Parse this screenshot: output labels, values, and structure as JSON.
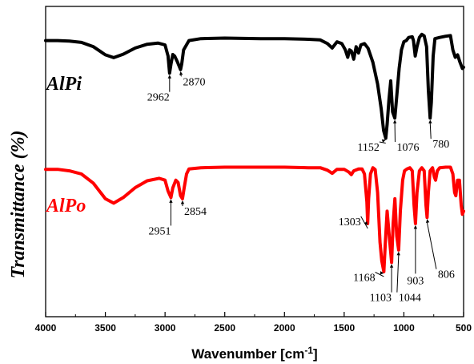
{
  "chart_data": {
    "type": "line",
    "xlabel": "Wavenumber [cm",
    "xlabel_sup": "-1",
    "xlabel_end": "]",
    "ylabel": "Transmittance (%)",
    "xlim": [
      4000,
      500
    ],
    "x_reversed": true,
    "ylim": [
      0,
      100
    ],
    "xticks": [
      "4000",
      "3500",
      "3000",
      "2500",
      "2000",
      "1500",
      "1000",
      "500"
    ],
    "grid": false,
    "series": [
      {
        "name": "AlPi",
        "color": "#000000",
        "points": [
          [
            4000,
            89
          ],
          [
            3900,
            89
          ],
          [
            3800,
            88.8
          ],
          [
            3700,
            88.4
          ],
          [
            3600,
            87
          ],
          [
            3500,
            84.4
          ],
          [
            3430,
            83.5
          ],
          [
            3350,
            84.6
          ],
          [
            3250,
            86.6
          ],
          [
            3150,
            87.8
          ],
          [
            3060,
            88.2
          ],
          [
            3000,
            87.6
          ],
          [
            2975,
            84
          ],
          [
            2962,
            78.5
          ],
          [
            2950,
            81.5
          ],
          [
            2935,
            84.5
          ],
          [
            2920,
            84
          ],
          [
            2895,
            82
          ],
          [
            2880,
            80.6
          ],
          [
            2870,
            79.6
          ],
          [
            2860,
            81.5
          ],
          [
            2845,
            86
          ],
          [
            2800,
            89
          ],
          [
            2700,
            89.6
          ],
          [
            2500,
            89.8
          ],
          [
            2200,
            89.6
          ],
          [
            2000,
            89.6
          ],
          [
            1800,
            89.4
          ],
          [
            1700,
            89.2
          ],
          [
            1640,
            88
          ],
          [
            1600,
            86.6
          ],
          [
            1560,
            88.6
          ],
          [
            1520,
            88
          ],
          [
            1490,
            86
          ],
          [
            1470,
            83.6
          ],
          [
            1455,
            86
          ],
          [
            1440,
            85.6
          ],
          [
            1420,
            83
          ],
          [
            1400,
            87
          ],
          [
            1380,
            85
          ],
          [
            1360,
            87.6
          ],
          [
            1330,
            88
          ],
          [
            1300,
            86.5
          ],
          [
            1260,
            82
          ],
          [
            1220,
            75
          ],
          [
            1190,
            67
          ],
          [
            1170,
            60
          ],
          [
            1152,
            57.5
          ],
          [
            1140,
            62
          ],
          [
            1125,
            70
          ],
          [
            1110,
            76
          ],
          [
            1095,
            66
          ],
          [
            1076,
            64
          ],
          [
            1060,
            71
          ],
          [
            1040,
            80
          ],
          [
            1020,
            86
          ],
          [
            1000,
            88.6
          ],
          [
            980,
            89
          ],
          [
            960,
            90
          ],
          [
            930,
            90.2
          ],
          [
            920,
            89
          ],
          [
            905,
            84
          ],
          [
            890,
            87
          ],
          [
            870,
            90
          ],
          [
            850,
            91
          ],
          [
            830,
            90.5
          ],
          [
            810,
            87
          ],
          [
            795,
            73
          ],
          [
            780,
            64
          ],
          [
            770,
            69
          ],
          [
            755,
            84
          ],
          [
            740,
            89.6
          ],
          [
            700,
            90
          ],
          [
            650,
            90.4
          ],
          [
            610,
            90.6
          ],
          [
            590,
            86
          ],
          [
            570,
            83.6
          ],
          [
            550,
            84.4
          ],
          [
            530,
            82
          ],
          [
            510,
            80
          ],
          [
            500,
            80.4
          ]
        ]
      },
      {
        "name": "AlPo",
        "color": "#ff0000",
        "points": [
          [
            4000,
            47.5
          ],
          [
            3900,
            47.5
          ],
          [
            3800,
            47
          ],
          [
            3700,
            46
          ],
          [
            3600,
            43
          ],
          [
            3500,
            38
          ],
          [
            3430,
            36.6
          ],
          [
            3350,
            38.4
          ],
          [
            3250,
            41.6
          ],
          [
            3150,
            43.8
          ],
          [
            3050,
            44.6
          ],
          [
            3000,
            44
          ],
          [
            2975,
            40.5
          ],
          [
            2951,
            38.4
          ],
          [
            2935,
            41.5
          ],
          [
            2910,
            44
          ],
          [
            2890,
            43.2
          ],
          [
            2870,
            39
          ],
          [
            2854,
            38
          ],
          [
            2840,
            41.5
          ],
          [
            2820,
            46
          ],
          [
            2800,
            47.6
          ],
          [
            2700,
            48
          ],
          [
            2500,
            48.2
          ],
          [
            2200,
            48.2
          ],
          [
            2000,
            48.2
          ],
          [
            1800,
            48
          ],
          [
            1700,
            48
          ],
          [
            1640,
            47.2
          ],
          [
            1600,
            46.2
          ],
          [
            1560,
            47.5
          ],
          [
            1500,
            47.5
          ],
          [
            1460,
            46.6
          ],
          [
            1440,
            45.8
          ],
          [
            1420,
            47
          ],
          [
            1380,
            47.6
          ],
          [
            1350,
            47.6
          ],
          [
            1330,
            46
          ],
          [
            1310,
            37
          ],
          [
            1303,
            30
          ],
          [
            1295,
            38
          ],
          [
            1280,
            46
          ],
          [
            1260,
            48
          ],
          [
            1240,
            47.4
          ],
          [
            1220,
            40
          ],
          [
            1200,
            24
          ],
          [
            1185,
            18
          ],
          [
            1168,
            14.5
          ],
          [
            1155,
            24
          ],
          [
            1140,
            34
          ],
          [
            1120,
            25
          ],
          [
            1103,
            17.5
          ],
          [
            1090,
            30
          ],
          [
            1075,
            38
          ],
          [
            1060,
            26
          ],
          [
            1044,
            21.5
          ],
          [
            1030,
            34
          ],
          [
            1010,
            44
          ],
          [
            995,
            47
          ],
          [
            975,
            47.6
          ],
          [
            950,
            48
          ],
          [
            930,
            47
          ],
          [
            915,
            36
          ],
          [
            903,
            30
          ],
          [
            890,
            40
          ],
          [
            870,
            47
          ],
          [
            850,
            48
          ],
          [
            830,
            47
          ],
          [
            815,
            36
          ],
          [
            806,
            32
          ],
          [
            795,
            40
          ],
          [
            780,
            47
          ],
          [
            760,
            48
          ],
          [
            745,
            45
          ],
          [
            735,
            44
          ],
          [
            720,
            47
          ],
          [
            700,
            48
          ],
          [
            650,
            48.2
          ],
          [
            610,
            48.2
          ],
          [
            590,
            46
          ],
          [
            575,
            40
          ],
          [
            565,
            39
          ],
          [
            550,
            44
          ],
          [
            535,
            44
          ],
          [
            520,
            36
          ],
          [
            510,
            33
          ],
          [
            500,
            34
          ]
        ]
      }
    ],
    "annotations": [
      {
        "text": "2962",
        "series": "AlPi",
        "x": 2962,
        "tip_y": 78.5,
        "label_x": 2962,
        "label_y": 69.6,
        "anchor": "end"
      },
      {
        "text": "2870",
        "series": "AlPi",
        "x": 2870,
        "tip_y": 79.6,
        "label_x": 2850,
        "label_y": 74.6,
        "anchor": "start"
      },
      {
        "text": "1152",
        "series": "AlPi",
        "x": 1152,
        "tip_y": 57.5,
        "label_x": 1205,
        "label_y": 53.5,
        "anchor": "end"
      },
      {
        "text": "1076",
        "series": "AlPi",
        "x": 1076,
        "tip_y": 64,
        "label_x": 1060,
        "label_y": 53.5,
        "anchor": "start"
      },
      {
        "text": "780",
        "series": "AlPi",
        "x": 780,
        "tip_y": 64,
        "label_x": 760,
        "label_y": 54.5,
        "anchor": "start"
      },
      {
        "text": "2951",
        "series": "AlPo",
        "x": 2951,
        "tip_y": 38.4,
        "label_x": 2951,
        "label_y": 26.5,
        "anchor": "end"
      },
      {
        "text": "2854",
        "series": "AlPo",
        "x": 2854,
        "tip_y": 38,
        "label_x": 2840,
        "label_y": 32.8,
        "anchor": "start"
      },
      {
        "text": "1303",
        "series": "AlPo",
        "x": 1303,
        "tip_y": 30,
        "label_x": 1360,
        "label_y": 29.5,
        "anchor": "end"
      },
      {
        "text": "1168",
        "series": "AlPo",
        "x": 1168,
        "tip_y": 14.5,
        "label_x": 1240,
        "label_y": 11.5,
        "anchor": "end"
      },
      {
        "text": "1103",
        "series": "AlPo",
        "x": 1103,
        "tip_y": 17.5,
        "label_x": 1103,
        "label_y": 5,
        "anchor": "end"
      },
      {
        "text": "1044",
        "series": "AlPo",
        "x": 1044,
        "tip_y": 21.5,
        "label_x": 1044,
        "label_y": 5,
        "anchor": "start"
      },
      {
        "text": "903",
        "series": "AlPo",
        "x": 903,
        "tip_y": 30,
        "label_x": 903,
        "label_y": 10.5,
        "anchor": "middle"
      },
      {
        "text": "806",
        "series": "AlPo",
        "x": 806,
        "tip_y": 32,
        "label_x": 715,
        "label_y": 12.5,
        "anchor": "start"
      }
    ]
  }
}
